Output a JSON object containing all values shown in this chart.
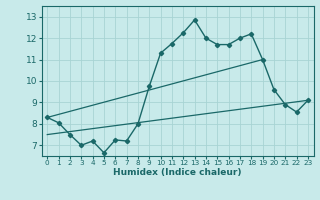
{
  "xlabel": "Humidex (Indice chaleur)",
  "bg_color": "#c8eaea",
  "grid_color": "#a8d4d4",
  "line_color": "#1a6868",
  "xlim": [
    -0.5,
    23.5
  ],
  "ylim": [
    6.5,
    13.5
  ],
  "yticks": [
    7,
    8,
    9,
    10,
    11,
    12,
    13
  ],
  "xticks": [
    0,
    1,
    2,
    3,
    4,
    5,
    6,
    7,
    8,
    9,
    10,
    11,
    12,
    13,
    14,
    15,
    16,
    17,
    18,
    19,
    20,
    21,
    22,
    23
  ],
  "line1_x": [
    0,
    1,
    2,
    3,
    4,
    5,
    6,
    7,
    8,
    9,
    10,
    11,
    12,
    13,
    14,
    15,
    16,
    17,
    18,
    19,
    20,
    21,
    22,
    23
  ],
  "line1_y": [
    8.3,
    8.05,
    7.5,
    7.0,
    7.2,
    6.65,
    7.25,
    7.2,
    8.0,
    9.75,
    11.3,
    11.75,
    12.25,
    12.85,
    12.0,
    11.7,
    11.7,
    12.0,
    12.2,
    11.0,
    9.6,
    8.9,
    8.55,
    9.1
  ],
  "line2_x": [
    0,
    19
  ],
  "line2_y": [
    8.3,
    11.0
  ],
  "line3_x": [
    0,
    23
  ],
  "line3_y": [
    7.5,
    9.1
  ]
}
